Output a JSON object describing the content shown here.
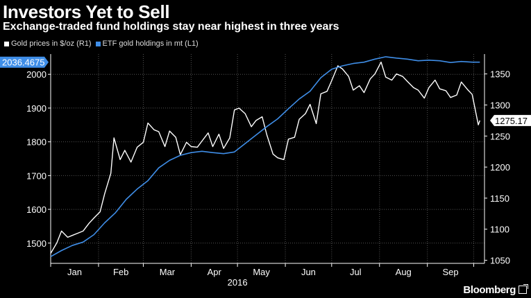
{
  "title": "Investors Yet to Sell",
  "subtitle": "Exchange-traded fund holdings stay near highest in three years",
  "brand": "Bloomberg",
  "colors": {
    "background": "#000000",
    "gold_series": "#ffffff",
    "etf_series": "#3f8ee8",
    "callout_left_bg": "#3f8ee8",
    "callout_right_bg": "#ffffff",
    "grid": "#555555"
  },
  "chart_data": {
    "type": "line",
    "title": "Investors Yet to Sell",
    "subtitle": "Exchange-traded fund holdings stay near highest in three years",
    "xlabel": "2016",
    "x_ticks": [
      "Jan",
      "Feb",
      "Mar",
      "Apr",
      "May",
      "Jun",
      "Jul",
      "Aug",
      "Sep"
    ],
    "y_left": {
      "label": "",
      "range": [
        1440,
        2060
      ],
      "ticks": [
        1500,
        1600,
        1700,
        1800,
        1900,
        2000
      ]
    },
    "y_right": {
      "label": "",
      "range": [
        1045,
        1382
      ],
      "ticks": [
        1050,
        1100,
        1150,
        1200,
        1250,
        1300,
        1350
      ]
    },
    "grid": true,
    "legend": "top-left",
    "series": [
      {
        "name": "Gold prices in $/oz (R1)",
        "axis": "right",
        "color": "#ffffff",
        "last_label": "1275.17",
        "x": [
          "2016-01-01",
          "2016-01-05",
          "2016-01-08",
          "2016-01-12",
          "2016-01-15",
          "2016-01-19",
          "2016-01-22",
          "2016-01-26",
          "2016-01-29",
          "2016-02-02",
          "2016-02-05",
          "2016-02-09",
          "2016-02-11",
          "2016-02-15",
          "2016-02-18",
          "2016-02-22",
          "2016-02-26",
          "2016-03-01",
          "2016-03-04",
          "2016-03-08",
          "2016-03-11",
          "2016-03-15",
          "2016-03-18",
          "2016-03-22",
          "2016-03-25",
          "2016-03-29",
          "2016-04-01",
          "2016-04-05",
          "2016-04-08",
          "2016-04-12",
          "2016-04-15",
          "2016-04-19",
          "2016-04-22",
          "2016-04-26",
          "2016-04-29",
          "2016-05-02",
          "2016-05-06",
          "2016-05-10",
          "2016-05-13",
          "2016-05-17",
          "2016-05-20",
          "2016-05-24",
          "2016-05-27",
          "2016-05-31",
          "2016-06-03",
          "2016-06-07",
          "2016-06-10",
          "2016-06-14",
          "2016-06-17",
          "2016-06-21",
          "2016-06-24",
          "2016-06-28",
          "2016-07-01",
          "2016-07-05",
          "2016-07-08",
          "2016-07-12",
          "2016-07-15",
          "2016-07-19",
          "2016-07-22",
          "2016-07-26",
          "2016-07-29",
          "2016-08-02",
          "2016-08-05",
          "2016-08-09",
          "2016-08-12",
          "2016-08-16",
          "2016-08-19",
          "2016-08-23",
          "2016-08-26",
          "2016-08-30",
          "2016-09-02",
          "2016-09-06",
          "2016-09-09",
          "2016-09-13",
          "2016-09-16",
          "2016-09-20",
          "2016-09-23",
          "2016-09-27",
          "2016-09-30",
          "2016-10-04",
          "2016-10-05"
        ],
        "values": [
          1061,
          1078,
          1097,
          1087,
          1090,
          1094,
          1097,
          1110,
          1118,
          1128,
          1157,
          1190,
          1247,
          1212,
          1227,
          1208,
          1232,
          1240,
          1271,
          1260,
          1257,
          1233,
          1258,
          1248,
          1220,
          1240,
          1233,
          1232,
          1242,
          1255,
          1233,
          1253,
          1230,
          1247,
          1292,
          1295,
          1286,
          1265,
          1275,
          1281,
          1252,
          1221,
          1215,
          1212,
          1245,
          1248,
          1277,
          1286,
          1301,
          1270,
          1318,
          1322,
          1339,
          1363,
          1358,
          1346,
          1324,
          1331,
          1320,
          1342,
          1350,
          1369,
          1345,
          1340,
          1350,
          1346,
          1338,
          1328,
          1324,
          1311,
          1328,
          1340,
          1326,
          1323,
          1312,
          1316,
          1337,
          1325,
          1317,
          1268,
          1275
        ]
      },
      {
        "name": "ETF gold holdings in mt (L1)",
        "axis": "left",
        "color": "#3f8ee8",
        "last_label": "2036.4675",
        "x": [
          "2016-01-01",
          "2016-01-08",
          "2016-01-15",
          "2016-01-22",
          "2016-01-29",
          "2016-02-05",
          "2016-02-12",
          "2016-02-19",
          "2016-02-26",
          "2016-03-04",
          "2016-03-11",
          "2016-03-18",
          "2016-03-25",
          "2016-04-01",
          "2016-04-08",
          "2016-04-15",
          "2016-04-22",
          "2016-04-29",
          "2016-05-06",
          "2016-05-13",
          "2016-05-20",
          "2016-05-27",
          "2016-06-03",
          "2016-06-10",
          "2016-06-17",
          "2016-06-24",
          "2016-07-01",
          "2016-07-08",
          "2016-07-15",
          "2016-07-22",
          "2016-07-29",
          "2016-08-05",
          "2016-08-12",
          "2016-08-19",
          "2016-08-26",
          "2016-09-02",
          "2016-09-09",
          "2016-09-16",
          "2016-09-23",
          "2016-09-30",
          "2016-10-05"
        ],
        "values": [
          1460,
          1478,
          1493,
          1503,
          1525,
          1560,
          1590,
          1630,
          1660,
          1685,
          1723,
          1745,
          1760,
          1768,
          1772,
          1768,
          1765,
          1770,
          1795,
          1820,
          1845,
          1868,
          1898,
          1927,
          1950,
          1990,
          2015,
          2025,
          2032,
          2036,
          2045,
          2052,
          2048,
          2045,
          2040,
          2042,
          2040,
          2035,
          2038,
          2036,
          2036
        ]
      }
    ]
  }
}
